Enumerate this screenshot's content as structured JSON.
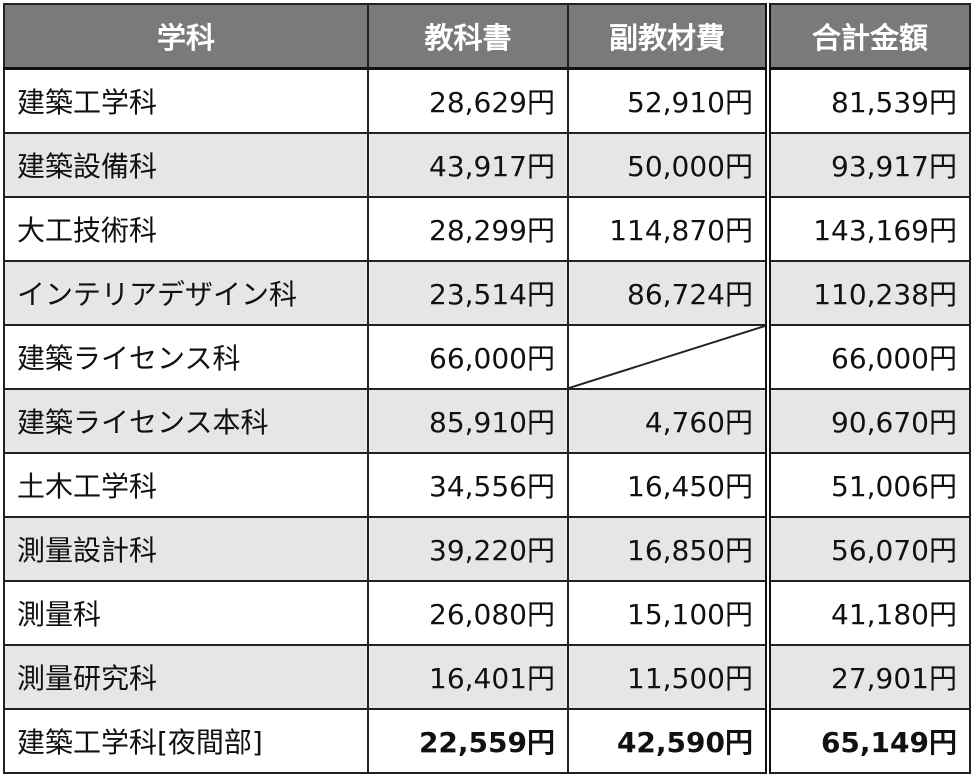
{
  "table": {
    "headers": [
      "学科",
      "教科書",
      "副教材費",
      "合計金額"
    ],
    "rows": [
      {
        "name": "建築工学科",
        "textbook": "28,629円",
        "materials": "52,910円",
        "total": "81,539円"
      },
      {
        "name": "建築設備科",
        "textbook": "43,917円",
        "materials": "50,000円",
        "total": "93,917円"
      },
      {
        "name": "大工技術科",
        "textbook": "28,299円",
        "materials": "114,870円",
        "total": "143,169円"
      },
      {
        "name": "インテリアデザイン科",
        "textbook": "23,514円",
        "materials": "86,724円",
        "total": "110,238円"
      },
      {
        "name": "建築ライセンス科",
        "textbook": "66,000円",
        "materials": "",
        "total": "66,000円"
      },
      {
        "name": "建築ライセンス本科",
        "textbook": "85,910円",
        "materials": "4,760円",
        "total": "90,670円"
      },
      {
        "name": "土木工学科",
        "textbook": "34,556円",
        "materials": "16,450円",
        "total": "51,006円"
      },
      {
        "name": "測量設計科",
        "textbook": "39,220円",
        "materials": "16,850円",
        "total": "56,070円"
      },
      {
        "name": "測量科",
        "textbook": "26,080円",
        "materials": "15,100円",
        "total": "41,180円"
      },
      {
        "name": "測量研究科",
        "textbook": "16,401円",
        "materials": "11,500円",
        "total": "27,901円"
      },
      {
        "name": "建築工学科[夜間部]",
        "textbook": "22,559円",
        "materials": "42,590円",
        "total": "65,149円"
      }
    ]
  }
}
